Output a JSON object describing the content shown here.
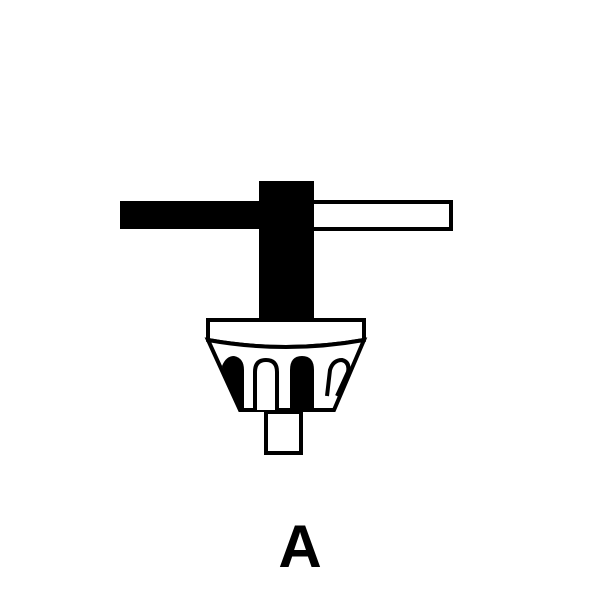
{
  "figure": {
    "caption": "A"
  },
  "colors": {
    "ink": "#000000",
    "paper": "#ffffff"
  },
  "icons": {
    "main": "chuck-key-icon"
  }
}
